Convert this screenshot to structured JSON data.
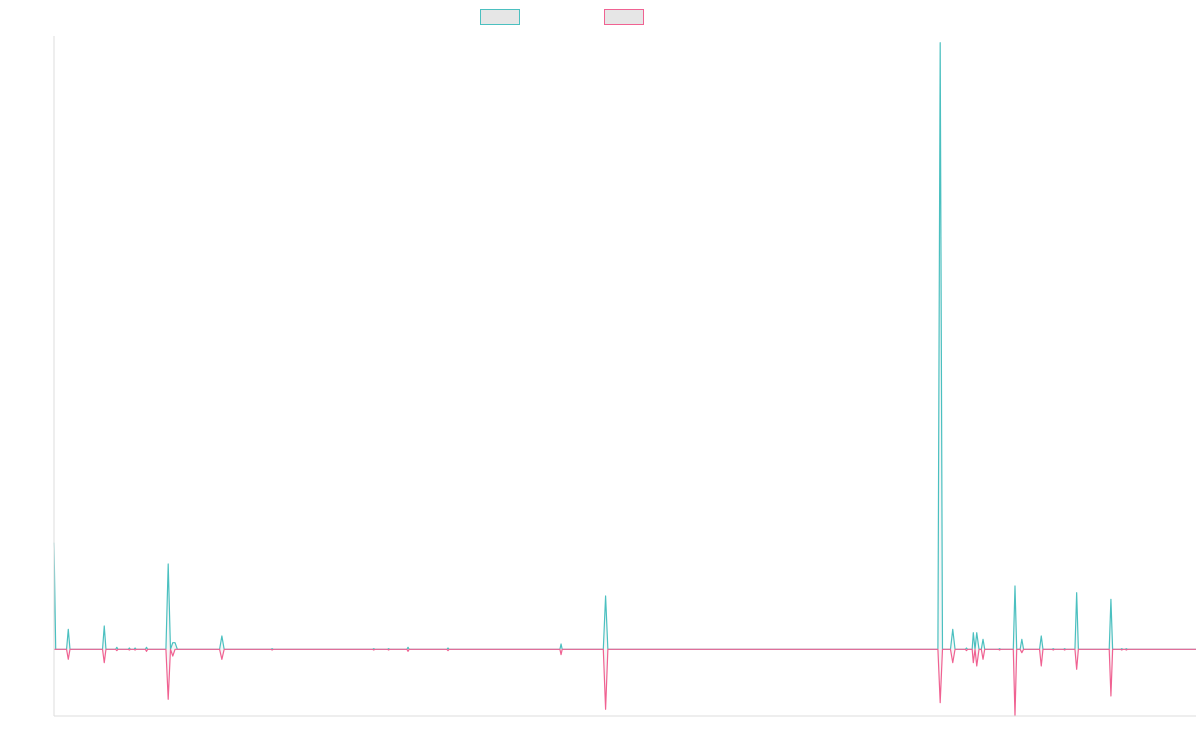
{
  "chart_data": {
    "type": "line",
    "title": "",
    "xlabel": "",
    "ylabel": "",
    "grid": false,
    "legend_position": "top-center",
    "x_range": [
      0,
      1000
    ],
    "ylim": [
      -10,
      92
    ],
    "baseline": 0,
    "series": [
      {
        "name": "",
        "color": "#4bc0c0",
        "fill": "#e6e6e6",
        "points": [
          [
            0,
            16
          ],
          [
            1.5,
            0
          ],
          [
            11,
            0
          ],
          [
            12.5,
            3
          ],
          [
            14,
            0
          ],
          [
            22,
            0
          ],
          [
            42.5,
            0
          ],
          [
            44,
            3.5
          ],
          [
            45.5,
            0
          ],
          [
            54,
            0
          ],
          [
            55,
            0.3
          ],
          [
            56,
            0
          ],
          [
            65,
            0
          ],
          [
            66,
            0.2
          ],
          [
            67,
            0
          ],
          [
            70,
            0
          ],
          [
            71,
            0.2
          ],
          [
            72,
            0
          ],
          [
            80,
            0
          ],
          [
            81,
            0.3
          ],
          [
            82,
            0
          ],
          [
            98,
            0
          ],
          [
            100,
            12.8
          ],
          [
            102,
            0
          ],
          [
            104,
            1
          ],
          [
            106,
            1
          ],
          [
            108,
            0
          ],
          [
            145,
            0
          ],
          [
            147,
            2
          ],
          [
            149,
            0
          ],
          [
            190,
            0
          ],
          [
            191,
            0.1
          ],
          [
            192,
            0
          ],
          [
            279,
            0
          ],
          [
            280,
            0.1
          ],
          [
            281,
            0
          ],
          [
            292,
            0
          ],
          [
            293,
            0.1
          ],
          [
            294,
            0
          ],
          [
            309,
            0
          ],
          [
            310,
            0.3
          ],
          [
            311,
            0
          ],
          [
            344,
            0
          ],
          [
            345,
            0.2
          ],
          [
            346,
            0
          ],
          [
            443,
            0
          ],
          [
            444,
            0.8
          ],
          [
            445,
            0
          ],
          [
            481,
            0
          ],
          [
            483,
            8
          ],
          [
            485,
            0
          ],
          [
            774,
            0
          ],
          [
            776,
            91
          ],
          [
            778,
            0
          ],
          [
            785,
            0
          ],
          [
            787,
            3
          ],
          [
            789,
            0
          ],
          [
            798,
            0
          ],
          [
            799,
            0.2
          ],
          [
            800,
            0
          ],
          [
            804,
            0
          ],
          [
            805,
            2.5
          ],
          [
            806.5,
            0
          ],
          [
            808,
            2.5
          ],
          [
            810,
            0
          ],
          [
            812,
            0
          ],
          [
            813.5,
            1.5
          ],
          [
            815,
            0
          ],
          [
            827,
            0
          ],
          [
            828,
            0.1
          ],
          [
            829,
            0
          ],
          [
            840,
            0
          ],
          [
            841.5,
            9.5
          ],
          [
            843,
            0
          ],
          [
            846,
            0
          ],
          [
            847.5,
            1.5
          ],
          [
            849,
            0
          ],
          [
            863,
            0
          ],
          [
            864.5,
            2
          ],
          [
            866,
            0
          ],
          [
            874,
            0
          ],
          [
            875,
            0.1
          ],
          [
            876,
            0
          ],
          [
            884,
            0
          ],
          [
            885,
            0.1
          ],
          [
            886,
            0
          ],
          [
            894,
            0
          ],
          [
            895.5,
            8.5
          ],
          [
            897,
            0
          ],
          [
            924,
            0
          ],
          [
            925.5,
            7.5
          ],
          [
            927,
            0
          ],
          [
            934,
            0
          ],
          [
            935,
            0.1
          ],
          [
            936,
            0
          ],
          [
            938,
            0
          ],
          [
            939,
            0.1
          ],
          [
            940,
            0
          ],
          [
            1000,
            0
          ]
        ]
      },
      {
        "name": "",
        "color": "#f06292",
        "fill": "#e6e6e6",
        "points": [
          [
            0,
            0
          ],
          [
            11,
            0
          ],
          [
            12.5,
            -1.5
          ],
          [
            14,
            0
          ],
          [
            42.5,
            0
          ],
          [
            44,
            -2
          ],
          [
            45.5,
            0
          ],
          [
            54,
            0
          ],
          [
            55,
            -0.2
          ],
          [
            56,
            0
          ],
          [
            65,
            0
          ],
          [
            66,
            -0.1
          ],
          [
            67,
            0
          ],
          [
            70,
            0
          ],
          [
            71,
            -0.1
          ],
          [
            72,
            0
          ],
          [
            80,
            0
          ],
          [
            81,
            -0.3
          ],
          [
            82,
            0
          ],
          [
            98,
            0
          ],
          [
            100,
            -7.5
          ],
          [
            102,
            0
          ],
          [
            104,
            -1
          ],
          [
            106,
            0
          ],
          [
            145,
            0
          ],
          [
            147,
            -1.5
          ],
          [
            149,
            0
          ],
          [
            190,
            0
          ],
          [
            191,
            -0.1
          ],
          [
            192,
            0
          ],
          [
            279,
            0
          ],
          [
            280,
            -0.1
          ],
          [
            281,
            0
          ],
          [
            292,
            0
          ],
          [
            293,
            -0.1
          ],
          [
            294,
            0
          ],
          [
            309,
            0
          ],
          [
            310,
            -0.3
          ],
          [
            311,
            0
          ],
          [
            344,
            0
          ],
          [
            345,
            -0.2
          ],
          [
            346,
            0
          ],
          [
            443,
            0
          ],
          [
            444,
            -0.8
          ],
          [
            445,
            0
          ],
          [
            481,
            0
          ],
          [
            483,
            -9
          ],
          [
            485,
            0
          ],
          [
            774,
            0
          ],
          [
            776,
            -8
          ],
          [
            778,
            0
          ],
          [
            785,
            0
          ],
          [
            787,
            -2
          ],
          [
            789,
            0
          ],
          [
            798,
            0
          ],
          [
            799,
            -0.2
          ],
          [
            800,
            0
          ],
          [
            804,
            0
          ],
          [
            805,
            -2
          ],
          [
            806.5,
            0
          ],
          [
            808,
            -2.5
          ],
          [
            810,
            0
          ],
          [
            812,
            0
          ],
          [
            813.5,
            -1.5
          ],
          [
            815,
            0
          ],
          [
            827,
            0
          ],
          [
            828,
            -0.1
          ],
          [
            829,
            0
          ],
          [
            840,
            0
          ],
          [
            841.5,
            -10
          ],
          [
            843,
            0
          ],
          [
            846,
            0
          ],
          [
            847.5,
            -0.5
          ],
          [
            849,
            0
          ],
          [
            863,
            0
          ],
          [
            864.5,
            -2.5
          ],
          [
            866,
            0
          ],
          [
            874,
            0
          ],
          [
            875,
            -0.1
          ],
          [
            876,
            0
          ],
          [
            884,
            0
          ],
          [
            885,
            -0.1
          ],
          [
            886,
            0
          ],
          [
            894,
            0
          ],
          [
            895.5,
            -3
          ],
          [
            897,
            0
          ],
          [
            924,
            0
          ],
          [
            925.5,
            -7
          ],
          [
            927,
            0
          ],
          [
            934,
            0
          ],
          [
            935,
            -0.1
          ],
          [
            936,
            0
          ],
          [
            938,
            0
          ],
          [
            939,
            -0.1
          ],
          [
            940,
            0
          ],
          [
            1000,
            0
          ]
        ]
      }
    ]
  }
}
